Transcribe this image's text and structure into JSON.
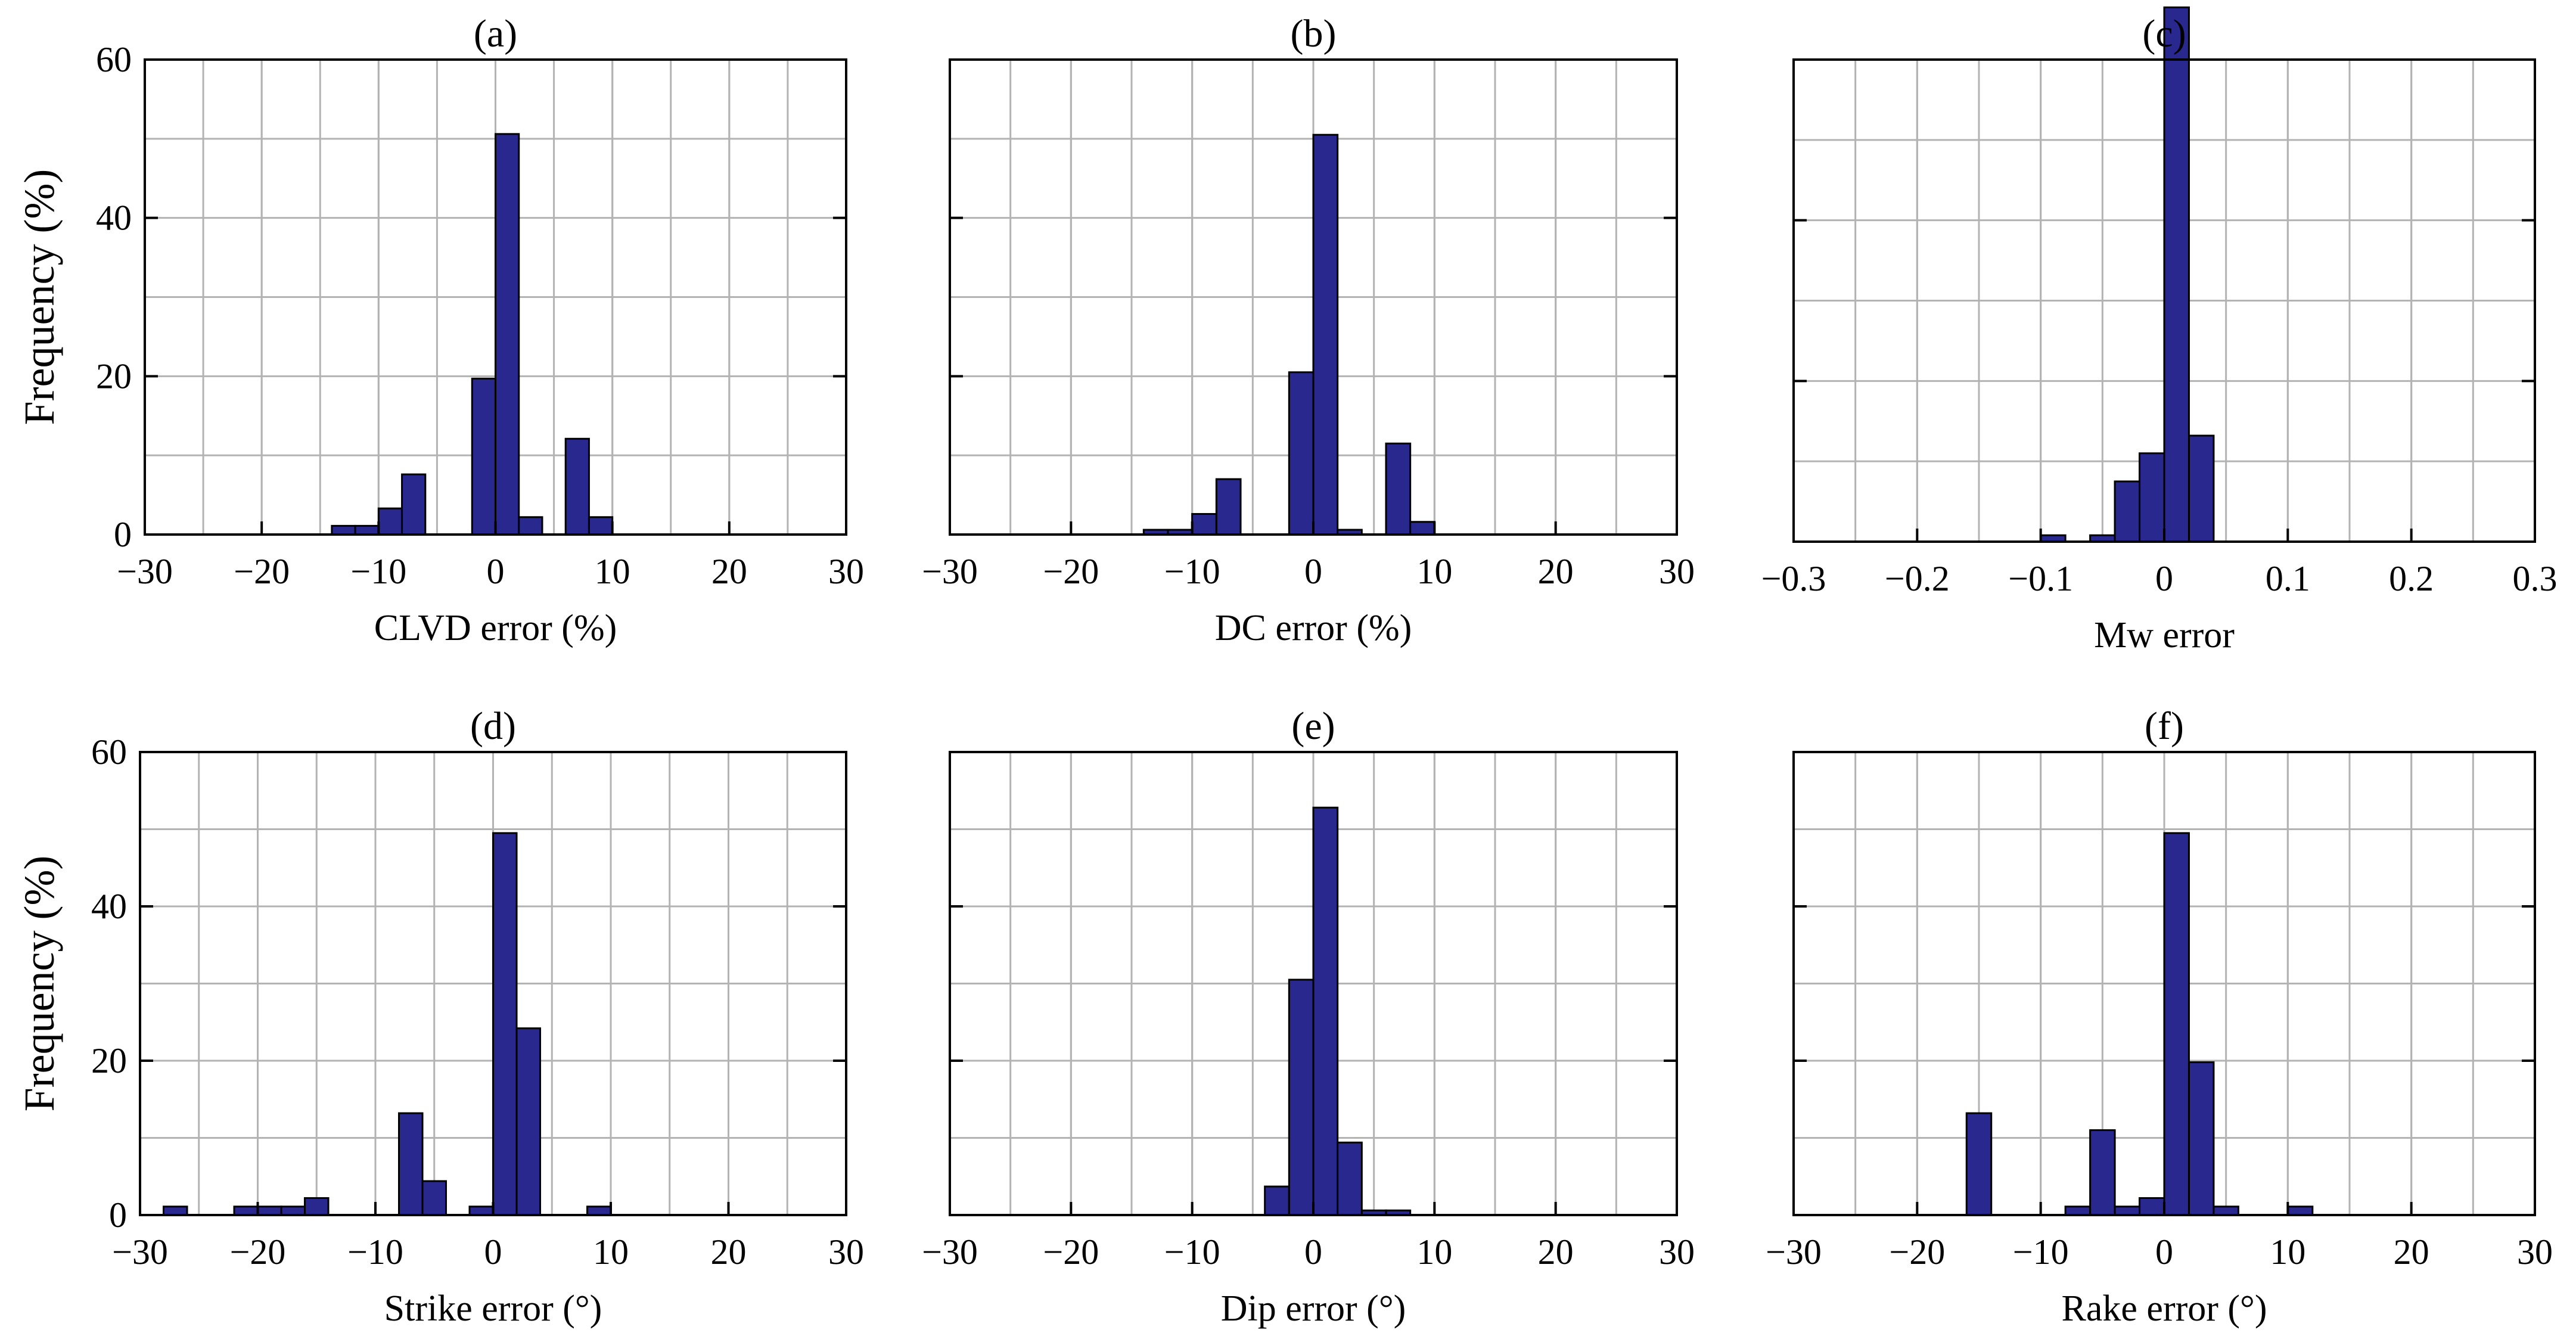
{
  "colors": {
    "bar_fill": "#28288f",
    "bar_edge": "#000000",
    "grid": "#b3b3b3",
    "frame": "#000000"
  },
  "chart_data": [
    {
      "type": "bar",
      "title": "(a)",
      "xlabel": "CLVD error (%)",
      "ylabel": "Frequency (%)",
      "xlim": [
        -30,
        30
      ],
      "ylim": [
        0,
        60
      ],
      "grid": true,
      "xticks": [
        -30,
        -20,
        -10,
        0,
        10,
        20,
        30
      ],
      "xtick_labels": [
        "−30",
        "−20",
        "−10",
        "0",
        "10",
        "20",
        "30"
      ],
      "yticks": [
        0,
        20,
        40,
        60
      ],
      "ytick_labels": [
        "0",
        "20",
        "40",
        "60"
      ],
      "bin_width": 2,
      "bins": [
        {
          "x": -13,
          "value": 1.1
        },
        {
          "x": -11,
          "value": 1.1
        },
        {
          "x": -9,
          "value": 3.3
        },
        {
          "x": -7,
          "value": 7.6
        },
        {
          "x": -1,
          "value": 19.7
        },
        {
          "x": 1,
          "value": 50.6
        },
        {
          "x": 3,
          "value": 2.2
        },
        {
          "x": 7,
          "value": 12.1
        },
        {
          "x": 9,
          "value": 2.2
        }
      ]
    },
    {
      "type": "bar",
      "title": "(b)",
      "xlabel": "DC error (%)",
      "ylabel": "",
      "xlim": [
        -30,
        30
      ],
      "ylim": [
        0,
        60
      ],
      "grid": true,
      "xticks": [
        -30,
        -20,
        -10,
        0,
        10,
        20,
        30
      ],
      "xtick_labels": [
        "−30",
        "−20",
        "−10",
        "0",
        "10",
        "20",
        "30"
      ],
      "yticks": [
        0,
        20,
        40,
        60
      ],
      "ytick_labels": [],
      "bin_width": 2,
      "bins": [
        {
          "x": -13,
          "value": 0.6
        },
        {
          "x": -11,
          "value": 0.6
        },
        {
          "x": -9,
          "value": 2.6
        },
        {
          "x": -7,
          "value": 7.0
        },
        {
          "x": -1,
          "value": 20.5
        },
        {
          "x": 1,
          "value": 50.5
        },
        {
          "x": 3,
          "value": 0.6
        },
        {
          "x": 7,
          "value": 11.5
        },
        {
          "x": 9,
          "value": 1.6
        }
      ]
    },
    {
      "type": "bar",
      "title": "(c)",
      "xlabel": "Mw error",
      "ylabel": "",
      "xlim": [
        -0.3,
        0.3
      ],
      "ylim": [
        0,
        60
      ],
      "grid": true,
      "xticks": [
        -0.3,
        -0.2,
        -0.1,
        0,
        0.1,
        0.2,
        0.3
      ],
      "xtick_labels": [
        "−0.3",
        "−0.2",
        "−0.1",
        "0",
        "0.1",
        "0.2",
        "0.3"
      ],
      "yticks": [
        0,
        20,
        40,
        60
      ],
      "ytick_labels": [],
      "bin_width": 0.02,
      "bins": [
        {
          "x": -0.09,
          "value": 0.8
        },
        {
          "x": -0.05,
          "value": 0.8
        },
        {
          "x": -0.03,
          "value": 7.5
        },
        {
          "x": -0.01,
          "value": 11.0
        },
        {
          "x": 0.01,
          "value": 66.5
        },
        {
          "x": 0.03,
          "value": 13.2
        }
      ]
    },
    {
      "type": "bar",
      "title": "(d)",
      "xlabel": "Strike error (°)",
      "ylabel": "Frequency (%)",
      "xlim": [
        -30,
        30
      ],
      "ylim": [
        0,
        60
      ],
      "grid": true,
      "xticks": [
        -30,
        -20,
        -10,
        0,
        10,
        20,
        30
      ],
      "xtick_labels": [
        "−30",
        "−20",
        "−10",
        "0",
        "10",
        "20",
        "30"
      ],
      "yticks": [
        0,
        20,
        40,
        60
      ],
      "ytick_labels": [
        "0",
        "20",
        "40",
        "60"
      ],
      "bin_width": 2,
      "bins": [
        {
          "x": -27,
          "value": 1.1
        },
        {
          "x": -21,
          "value": 1.1
        },
        {
          "x": -19,
          "value": 1.1
        },
        {
          "x": -17,
          "value": 1.1
        },
        {
          "x": -15,
          "value": 2.2
        },
        {
          "x": -7,
          "value": 13.2
        },
        {
          "x": -5,
          "value": 4.4
        },
        {
          "x": -1,
          "value": 1.1
        },
        {
          "x": 1,
          "value": 49.5
        },
        {
          "x": 3,
          "value": 24.2
        },
        {
          "x": 9,
          "value": 1.1
        }
      ]
    },
    {
      "type": "bar",
      "title": "(e)",
      "xlabel": "Dip error (°)",
      "ylabel": "",
      "xlim": [
        -30,
        30
      ],
      "ylim": [
        0,
        60
      ],
      "grid": true,
      "xticks": [
        -30,
        -20,
        -10,
        0,
        10,
        20,
        30
      ],
      "xtick_labels": [
        "−30",
        "−20",
        "−10",
        "0",
        "10",
        "20",
        "30"
      ],
      "yticks": [
        0,
        20,
        40,
        60
      ],
      "ytick_labels": [],
      "bin_width": 2,
      "bins": [
        {
          "x": -3,
          "value": 3.7
        },
        {
          "x": -1,
          "value": 30.5
        },
        {
          "x": 1,
          "value": 52.8
        },
        {
          "x": 3,
          "value": 9.4
        },
        {
          "x": 5,
          "value": 0.6
        },
        {
          "x": 7,
          "value": 0.6
        }
      ]
    },
    {
      "type": "bar",
      "title": "(f)",
      "xlabel": "Rake error (°)",
      "ylabel": "",
      "xlim": [
        -30,
        30
      ],
      "ylim": [
        0,
        60
      ],
      "grid": true,
      "xticks": [
        -30,
        -20,
        -10,
        0,
        10,
        20,
        30
      ],
      "xtick_labels": [
        "−30",
        "−20",
        "−10",
        "0",
        "10",
        "20",
        "30"
      ],
      "yticks": [
        0,
        20,
        40,
        60
      ],
      "ytick_labels": [],
      "bin_width": 2,
      "bins": [
        {
          "x": -15,
          "value": 13.2
        },
        {
          "x": -7,
          "value": 1.1
        },
        {
          "x": -5,
          "value": 11.0
        },
        {
          "x": -3,
          "value": 1.1
        },
        {
          "x": -1,
          "value": 2.2
        },
        {
          "x": 1,
          "value": 49.5
        },
        {
          "x": 3,
          "value": 19.8
        },
        {
          "x": 5,
          "value": 1.1
        },
        {
          "x": 11,
          "value": 1.1
        }
      ]
    }
  ]
}
